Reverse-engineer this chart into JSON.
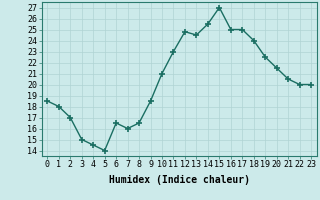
{
  "x": [
    0,
    1,
    2,
    3,
    4,
    5,
    6,
    7,
    8,
    9,
    10,
    11,
    12,
    13,
    14,
    15,
    16,
    17,
    18,
    19,
    20,
    21,
    22,
    23
  ],
  "y": [
    18.5,
    18.0,
    17.0,
    15.0,
    14.5,
    14.0,
    16.5,
    16.0,
    16.5,
    18.5,
    21.0,
    23.0,
    24.8,
    24.5,
    25.5,
    27.0,
    25.0,
    25.0,
    24.0,
    22.5,
    21.5,
    20.5,
    20.0,
    20.0
  ],
  "line_color": "#1a6e62",
  "marker": "+",
  "markersize": 4,
  "markeredgewidth": 1.2,
  "bg_color": "#cceaea",
  "grid_color": "#b0d4d4",
  "xlabel": "Humidex (Indice chaleur)",
  "ylabel_ticks": [
    14,
    15,
    16,
    17,
    18,
    19,
    20,
    21,
    22,
    23,
    24,
    25,
    26,
    27
  ],
  "ylim": [
    13.5,
    27.5
  ],
  "xlim": [
    -0.5,
    23.5
  ],
  "xlabel_fontsize": 7,
  "tick_fontsize": 6,
  "linewidth": 1.0
}
